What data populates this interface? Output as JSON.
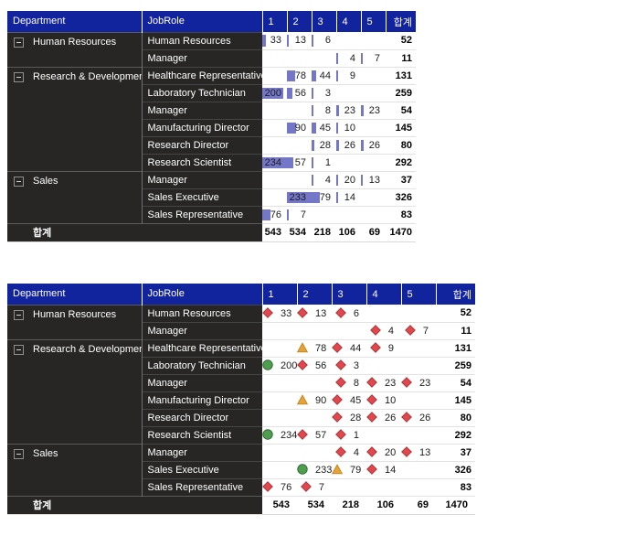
{
  "columns": {
    "department": "Department",
    "job_role": "JobRole",
    "values": [
      "1",
      "2",
      "3",
      "4",
      "5"
    ],
    "total": "합계"
  },
  "totals": {
    "label": "합계",
    "values": [
      "543",
      "534",
      "218",
      "106",
      "69"
    ],
    "grand": "1470"
  },
  "rows": [
    {
      "department": "Human Resources",
      "dept_rowspan": 2,
      "job_role": "Human Resources",
      "cells": [
        {
          "col": 0,
          "value": 33,
          "icon": "diamond"
        },
        {
          "col": 1,
          "value": 13,
          "icon": "diamond"
        },
        {
          "col": 2,
          "value": 6,
          "icon": "diamond"
        }
      ],
      "total": 52
    },
    {
      "job_role": "Manager",
      "cells": [
        {
          "col": 3,
          "value": 4,
          "icon": "diamond"
        },
        {
          "col": 4,
          "value": 7,
          "icon": "diamond"
        }
      ],
      "total": 11
    },
    {
      "department": "Research & Development",
      "dept_rowspan": 6,
      "job_role": "Healthcare Representative",
      "cells": [
        {
          "col": 1,
          "value": 78,
          "icon": "triangle"
        },
        {
          "col": 2,
          "value": 44,
          "icon": "diamond"
        },
        {
          "col": 3,
          "value": 9,
          "icon": "diamond"
        }
      ],
      "total": 131
    },
    {
      "job_role": "Laboratory Technician",
      "cells": [
        {
          "col": 0,
          "value": 200,
          "icon": "circle"
        },
        {
          "col": 1,
          "value": 56,
          "icon": "diamond"
        },
        {
          "col": 2,
          "value": 3,
          "icon": "diamond"
        }
      ],
      "total": 259
    },
    {
      "job_role": "Manager",
      "cells": [
        {
          "col": 2,
          "value": 8,
          "icon": "diamond"
        },
        {
          "col": 3,
          "value": 23,
          "icon": "diamond"
        },
        {
          "col": 4,
          "value": 23,
          "icon": "diamond"
        }
      ],
      "total": 54
    },
    {
      "job_role": "Manufacturing Director",
      "cells": [
        {
          "col": 1,
          "value": 90,
          "icon": "triangle"
        },
        {
          "col": 2,
          "value": 45,
          "icon": "diamond"
        },
        {
          "col": 3,
          "value": 10,
          "icon": "diamond"
        }
      ],
      "total": 145
    },
    {
      "job_role": "Research Director",
      "cells": [
        {
          "col": 2,
          "value": 28,
          "icon": "diamond"
        },
        {
          "col": 3,
          "value": 26,
          "icon": "diamond"
        },
        {
          "col": 4,
          "value": 26,
          "icon": "diamond"
        }
      ],
      "total": 80
    },
    {
      "job_role": "Research Scientist",
      "cells": [
        {
          "col": 0,
          "value": 234,
          "icon": "circle"
        },
        {
          "col": 1,
          "value": 57,
          "icon": "diamond"
        },
        {
          "col": 2,
          "value": 1,
          "icon": "diamond"
        }
      ],
      "total": 292
    },
    {
      "department": "Sales",
      "dept_rowspan": 3,
      "job_role": "Manager",
      "cells": [
        {
          "col": 2,
          "value": 4,
          "icon": "diamond"
        },
        {
          "col": 3,
          "value": 20,
          "icon": "diamond"
        },
        {
          "col": 4,
          "value": 13,
          "icon": "diamond"
        }
      ],
      "total": 37
    },
    {
      "job_role": "Sales Executive",
      "cells": [
        {
          "col": 1,
          "value": 233,
          "icon": "circle"
        },
        {
          "col": 2,
          "value": 79,
          "icon": "triangle"
        },
        {
          "col": 3,
          "value": 14,
          "icon": "diamond"
        }
      ],
      "total": 326
    },
    {
      "job_role": "Sales Representative",
      "cells": [
        {
          "col": 0,
          "value": 76,
          "icon": "diamond"
        },
        {
          "col": 1,
          "value": 7,
          "icon": "diamond"
        }
      ],
      "total": 83
    }
  ],
  "bar": {
    "max": 234,
    "color": "#7477C8"
  },
  "kpi_icons": {
    "diamond": {
      "fill": "#E0484E",
      "stroke": "#A93438"
    },
    "triangle": {
      "fill": "#E5A33C",
      "stroke": "#C4871F"
    },
    "circle": {
      "fill": "#4E9E50",
      "stroke": "#2F6B31"
    }
  },
  "colors": {
    "header_bg": "#12239E",
    "row_header_bg": "#272625",
    "header_text": "#FFFFFF"
  }
}
